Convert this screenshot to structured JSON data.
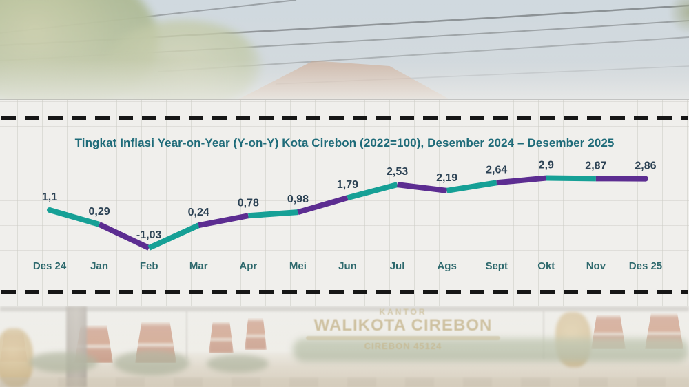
{
  "chart_data": {
    "type": "line",
    "title": "Tingkat Inflasi Year-on-Year (Y-on-Y) Kota Cirebon (2022=100), Desember 2024 – Desember 2025",
    "categories": [
      "Des 24",
      "Jan",
      "Feb",
      "Mar",
      "Apr",
      "Mei",
      "Jun",
      "Jul",
      "Ags",
      "Sept",
      "Okt",
      "Nov",
      "Des 25"
    ],
    "values": [
      1.1,
      0.29,
      -1.03,
      0.24,
      0.78,
      0.98,
      1.79,
      2.53,
      2.19,
      2.64,
      2.9,
      2.87,
      2.86
    ],
    "value_labels": [
      "1,1",
      "0,29",
      "-1,03",
      "0,24",
      "0,78",
      "0,98",
      "1,79",
      "2,53",
      "2,19",
      "2,64",
      "2,9",
      "2,87",
      "2,86"
    ],
    "decimal_separator": "comma",
    "xlabel": "",
    "ylabel": "",
    "grid": true,
    "legend": "none",
    "segment_colors_alternating": [
      "#16A096",
      "#5C2D91"
    ]
  },
  "colors": {
    "teal": "#16A096",
    "purple": "#5C2D91",
    "title_text": "#1E6B79",
    "value_text": "#2C4254",
    "axis_text": "#2E696D",
    "dashed_line": "#161616",
    "panel_bg": "#F0EFEC",
    "grid_line": "#CDCCC6"
  },
  "background_photo": {
    "top_description": "hazy sky with power lines, tree foliage left, tiled roof center",
    "sign": {
      "line1": "KANTOR",
      "line2": "WALIKOTA CIREBON",
      "line3": "CIREBON 45124"
    }
  }
}
